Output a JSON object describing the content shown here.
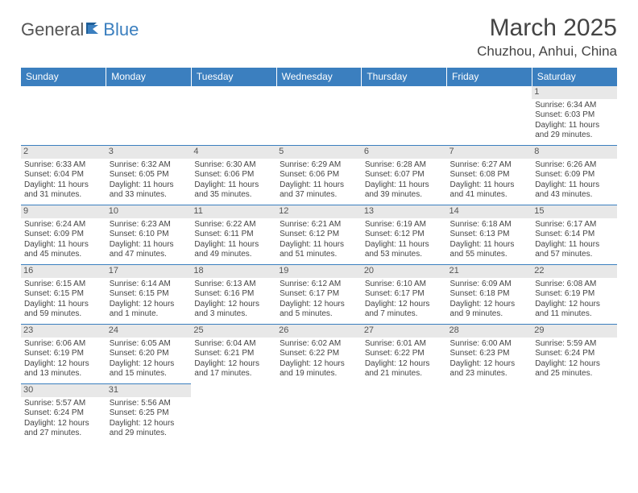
{
  "logo": {
    "text1": "General",
    "text2": "Blue"
  },
  "title": "March 2025",
  "location": "Chuzhou, Anhui, China",
  "colors": {
    "header_bg": "#3b7fbf",
    "header_text": "#ffffff",
    "daynum_bg": "#e8e8e8",
    "border": "#3b7fbf",
    "body_text": "#444444"
  },
  "weekdays": [
    "Sunday",
    "Monday",
    "Tuesday",
    "Wednesday",
    "Thursday",
    "Friday",
    "Saturday"
  ],
  "weeks": [
    [
      null,
      null,
      null,
      null,
      null,
      null,
      {
        "n": "1",
        "sr": "Sunrise: 6:34 AM",
        "ss": "Sunset: 6:03 PM",
        "d1": "Daylight: 11 hours",
        "d2": "and 29 minutes."
      }
    ],
    [
      {
        "n": "2",
        "sr": "Sunrise: 6:33 AM",
        "ss": "Sunset: 6:04 PM",
        "d1": "Daylight: 11 hours",
        "d2": "and 31 minutes."
      },
      {
        "n": "3",
        "sr": "Sunrise: 6:32 AM",
        "ss": "Sunset: 6:05 PM",
        "d1": "Daylight: 11 hours",
        "d2": "and 33 minutes."
      },
      {
        "n": "4",
        "sr": "Sunrise: 6:30 AM",
        "ss": "Sunset: 6:06 PM",
        "d1": "Daylight: 11 hours",
        "d2": "and 35 minutes."
      },
      {
        "n": "5",
        "sr": "Sunrise: 6:29 AM",
        "ss": "Sunset: 6:06 PM",
        "d1": "Daylight: 11 hours",
        "d2": "and 37 minutes."
      },
      {
        "n": "6",
        "sr": "Sunrise: 6:28 AM",
        "ss": "Sunset: 6:07 PM",
        "d1": "Daylight: 11 hours",
        "d2": "and 39 minutes."
      },
      {
        "n": "7",
        "sr": "Sunrise: 6:27 AM",
        "ss": "Sunset: 6:08 PM",
        "d1": "Daylight: 11 hours",
        "d2": "and 41 minutes."
      },
      {
        "n": "8",
        "sr": "Sunrise: 6:26 AM",
        "ss": "Sunset: 6:09 PM",
        "d1": "Daylight: 11 hours",
        "d2": "and 43 minutes."
      }
    ],
    [
      {
        "n": "9",
        "sr": "Sunrise: 6:24 AM",
        "ss": "Sunset: 6:09 PM",
        "d1": "Daylight: 11 hours",
        "d2": "and 45 minutes."
      },
      {
        "n": "10",
        "sr": "Sunrise: 6:23 AM",
        "ss": "Sunset: 6:10 PM",
        "d1": "Daylight: 11 hours",
        "d2": "and 47 minutes."
      },
      {
        "n": "11",
        "sr": "Sunrise: 6:22 AM",
        "ss": "Sunset: 6:11 PM",
        "d1": "Daylight: 11 hours",
        "d2": "and 49 minutes."
      },
      {
        "n": "12",
        "sr": "Sunrise: 6:21 AM",
        "ss": "Sunset: 6:12 PM",
        "d1": "Daylight: 11 hours",
        "d2": "and 51 minutes."
      },
      {
        "n": "13",
        "sr": "Sunrise: 6:19 AM",
        "ss": "Sunset: 6:12 PM",
        "d1": "Daylight: 11 hours",
        "d2": "and 53 minutes."
      },
      {
        "n": "14",
        "sr": "Sunrise: 6:18 AM",
        "ss": "Sunset: 6:13 PM",
        "d1": "Daylight: 11 hours",
        "d2": "and 55 minutes."
      },
      {
        "n": "15",
        "sr": "Sunrise: 6:17 AM",
        "ss": "Sunset: 6:14 PM",
        "d1": "Daylight: 11 hours",
        "d2": "and 57 minutes."
      }
    ],
    [
      {
        "n": "16",
        "sr": "Sunrise: 6:15 AM",
        "ss": "Sunset: 6:15 PM",
        "d1": "Daylight: 11 hours",
        "d2": "and 59 minutes."
      },
      {
        "n": "17",
        "sr": "Sunrise: 6:14 AM",
        "ss": "Sunset: 6:15 PM",
        "d1": "Daylight: 12 hours",
        "d2": "and 1 minute."
      },
      {
        "n": "18",
        "sr": "Sunrise: 6:13 AM",
        "ss": "Sunset: 6:16 PM",
        "d1": "Daylight: 12 hours",
        "d2": "and 3 minutes."
      },
      {
        "n": "19",
        "sr": "Sunrise: 6:12 AM",
        "ss": "Sunset: 6:17 PM",
        "d1": "Daylight: 12 hours",
        "d2": "and 5 minutes."
      },
      {
        "n": "20",
        "sr": "Sunrise: 6:10 AM",
        "ss": "Sunset: 6:17 PM",
        "d1": "Daylight: 12 hours",
        "d2": "and 7 minutes."
      },
      {
        "n": "21",
        "sr": "Sunrise: 6:09 AM",
        "ss": "Sunset: 6:18 PM",
        "d1": "Daylight: 12 hours",
        "d2": "and 9 minutes."
      },
      {
        "n": "22",
        "sr": "Sunrise: 6:08 AM",
        "ss": "Sunset: 6:19 PM",
        "d1": "Daylight: 12 hours",
        "d2": "and 11 minutes."
      }
    ],
    [
      {
        "n": "23",
        "sr": "Sunrise: 6:06 AM",
        "ss": "Sunset: 6:19 PM",
        "d1": "Daylight: 12 hours",
        "d2": "and 13 minutes."
      },
      {
        "n": "24",
        "sr": "Sunrise: 6:05 AM",
        "ss": "Sunset: 6:20 PM",
        "d1": "Daylight: 12 hours",
        "d2": "and 15 minutes."
      },
      {
        "n": "25",
        "sr": "Sunrise: 6:04 AM",
        "ss": "Sunset: 6:21 PM",
        "d1": "Daylight: 12 hours",
        "d2": "and 17 minutes."
      },
      {
        "n": "26",
        "sr": "Sunrise: 6:02 AM",
        "ss": "Sunset: 6:22 PM",
        "d1": "Daylight: 12 hours",
        "d2": "and 19 minutes."
      },
      {
        "n": "27",
        "sr": "Sunrise: 6:01 AM",
        "ss": "Sunset: 6:22 PM",
        "d1": "Daylight: 12 hours",
        "d2": "and 21 minutes."
      },
      {
        "n": "28",
        "sr": "Sunrise: 6:00 AM",
        "ss": "Sunset: 6:23 PM",
        "d1": "Daylight: 12 hours",
        "d2": "and 23 minutes."
      },
      {
        "n": "29",
        "sr": "Sunrise: 5:59 AM",
        "ss": "Sunset: 6:24 PM",
        "d1": "Daylight: 12 hours",
        "d2": "and 25 minutes."
      }
    ],
    [
      {
        "n": "30",
        "sr": "Sunrise: 5:57 AM",
        "ss": "Sunset: 6:24 PM",
        "d1": "Daylight: 12 hours",
        "d2": "and 27 minutes."
      },
      {
        "n": "31",
        "sr": "Sunrise: 5:56 AM",
        "ss": "Sunset: 6:25 PM",
        "d1": "Daylight: 12 hours",
        "d2": "and 29 minutes."
      },
      null,
      null,
      null,
      null,
      null
    ]
  ]
}
